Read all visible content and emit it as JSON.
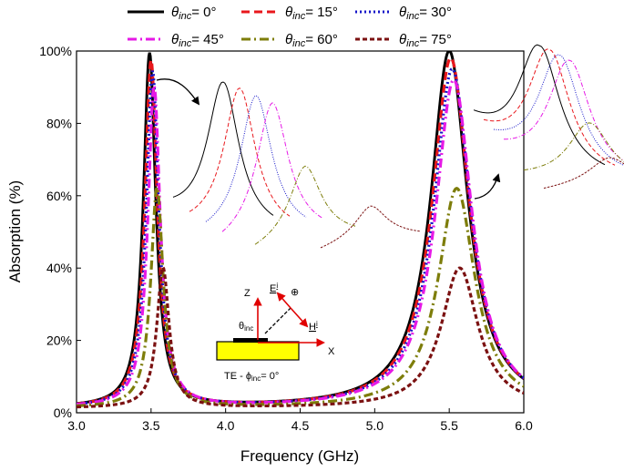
{
  "chart_data": {
    "type": "line",
    "xlabel": "Frequency (GHz)",
    "ylabel": "Absorption (%)",
    "xlim": [
      3.0,
      6.0
    ],
    "ylim": [
      0,
      100
    ],
    "xticks": [
      "3.0",
      "3.5",
      "4.0",
      "4.5",
      "5.0",
      "5.5",
      "6.0"
    ],
    "yticks": [
      "0%",
      "20%",
      "40%",
      "60%",
      "80%",
      "100%"
    ],
    "legend": {
      "placement": "top",
      "symbol": "θ",
      "subscript": "inc"
    },
    "series": [
      {
        "name": "θinc= 0°",
        "angle_text": "= 0°",
        "color": "#000000",
        "dash": "solid",
        "f1": 3.49,
        "a1": 99,
        "w1": 0.05,
        "f2": 5.5,
        "a2": 100,
        "w2": 0.15
      },
      {
        "name": "θinc= 15°",
        "angle_text": "= 15°",
        "color": "#e8171c",
        "dash": "dash",
        "f1": 3.5,
        "a1": 97,
        "w1": 0.05,
        "f2": 5.51,
        "a2": 98,
        "w2": 0.15
      },
      {
        "name": "θinc= 30°",
        "angle_text": "= 30°",
        "color": "#1414c8",
        "dash": "dot",
        "f1": 3.51,
        "a1": 94,
        "w1": 0.05,
        "f2": 5.52,
        "a2": 95,
        "w2": 0.15
      },
      {
        "name": "θinc= 45°",
        "angle_text": "= 45°",
        "color": "#e619e6",
        "dash": "dashdot",
        "f1": 3.52,
        "a1": 90,
        "w1": 0.05,
        "f2": 5.53,
        "a2": 92,
        "w2": 0.15
      },
      {
        "name": "θinc= 60°",
        "angle_text": "= 60°",
        "color": "#7d7d0a",
        "dash": "dashdot",
        "f1": 3.54,
        "a1": 62,
        "w1": 0.05,
        "f2": 5.55,
        "a2": 62,
        "w2": 0.15
      },
      {
        "name": "θinc= 75°",
        "angle_text": "= 75°",
        "color": "#7b1111",
        "dash": "shortdash",
        "f1": 3.58,
        "a1": 40,
        "w1": 0.05,
        "f2": 5.57,
        "a2": 40,
        "w2": 0.15
      }
    ],
    "inset": {
      "axis_z": "Z",
      "axis_x": "X",
      "e_label": "E",
      "e_sup": "i",
      "h_label": "H",
      "h_sup": "i",
      "theta_label": "θ",
      "theta_sub": "inc",
      "mode_prefix": "TE - ",
      "phi_symbol": "ϕ",
      "phi_sub": "inc",
      "mode_suffix": "= 0°",
      "cross_symbol": "⊕"
    },
    "zoom_insets": [
      {
        "target_peak": 1,
        "description": "zoom of first resonance"
      },
      {
        "target_peak": 2,
        "description": "zoom of second resonance"
      }
    ]
  }
}
